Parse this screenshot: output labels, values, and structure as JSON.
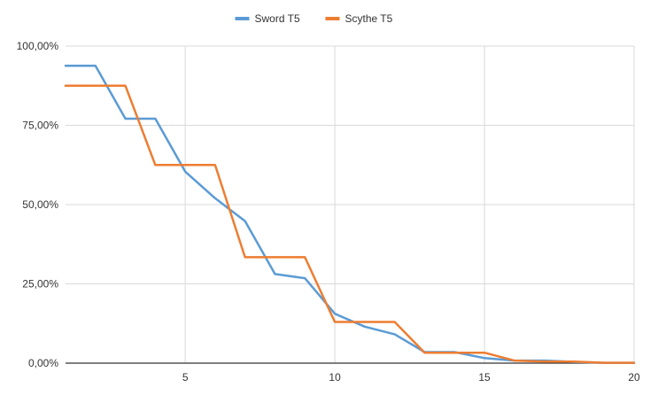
{
  "chart_data": {
    "type": "line",
    "title": "",
    "xlabel": "",
    "ylabel": "",
    "xlim": [
      1,
      20
    ],
    "ylim": [
      0,
      100
    ],
    "x_ticks": [
      5,
      10,
      15,
      20
    ],
    "x_tick_labels": [
      "5",
      "10",
      "15",
      "20"
    ],
    "y_ticks": [
      0,
      25,
      50,
      75,
      100
    ],
    "y_tick_labels": [
      "0,00%",
      "25,00%",
      "50,00%",
      "75,00%",
      "100,00%"
    ],
    "grid": true,
    "legend_position": "top",
    "x": [
      1,
      2,
      3,
      4,
      5,
      6,
      7,
      8,
      9,
      10,
      11,
      12,
      13,
      14,
      15,
      16,
      17,
      18,
      19,
      20
    ],
    "series": [
      {
        "name": "Sword T5",
        "color": "#5b9bd5",
        "values": [
          93.8,
          93.8,
          77.1,
          77.1,
          60.4,
          52.0,
          44.8,
          28.1,
          26.8,
          15.6,
          11.5,
          9.1,
          3.5,
          3.5,
          1.6,
          0.8,
          0.8,
          0.4,
          0.1,
          0.1
        ]
      },
      {
        "name": "Scythe T5",
        "color": "#ed7d31",
        "values": [
          87.5,
          87.5,
          87.5,
          62.5,
          62.5,
          62.5,
          33.4,
          33.4,
          33.4,
          13.0,
          13.0,
          13.0,
          3.3,
          3.3,
          3.3,
          0.8,
          0.5,
          0.5,
          0.1,
          0.1
        ]
      }
    ]
  }
}
